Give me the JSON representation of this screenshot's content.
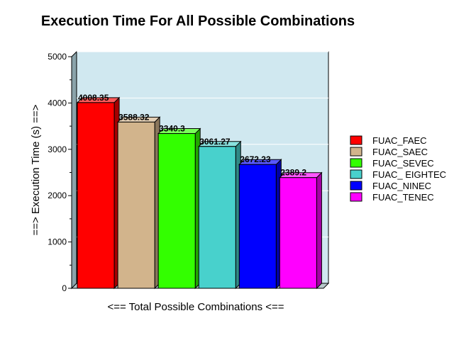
{
  "chart_data": {
    "type": "bar",
    "title": "Execution Time For All Possible Combinations",
    "xlabel": "<==  Total Possible Combinations <==",
    "ylabel": "==>  Execution Time  (s)  ==>",
    "ylim": [
      0,
      5000
    ],
    "yticks": [
      0,
      1000,
      2000,
      3000,
      4000,
      5000
    ],
    "grid": true,
    "legend_position": "right",
    "series": [
      {
        "name": "FUAC_FAEC",
        "value": 4008.35,
        "label": "4008.35",
        "color": "#ff0000"
      },
      {
        "name": "FUAC_SAEC",
        "value": 3588.32,
        "label": "3588.32",
        "color": "#d2b48c"
      },
      {
        "name": "FUAC_SEVEC",
        "value": 3340.3,
        "label": "3340.3",
        "color": "#33ff00"
      },
      {
        "name": "FUAC_ EIGHTEC",
        "value": 3061.27,
        "label": "3061.27",
        "color": "#48d1cc"
      },
      {
        "name": "FUAC_NINEC",
        "value": 2672.23,
        "label": "2672.23",
        "color": "#0000ff"
      },
      {
        "name": "FUAC_TENEC",
        "value": 2389.2,
        "label": "2389.2",
        "color": "#ff00ff"
      }
    ]
  }
}
